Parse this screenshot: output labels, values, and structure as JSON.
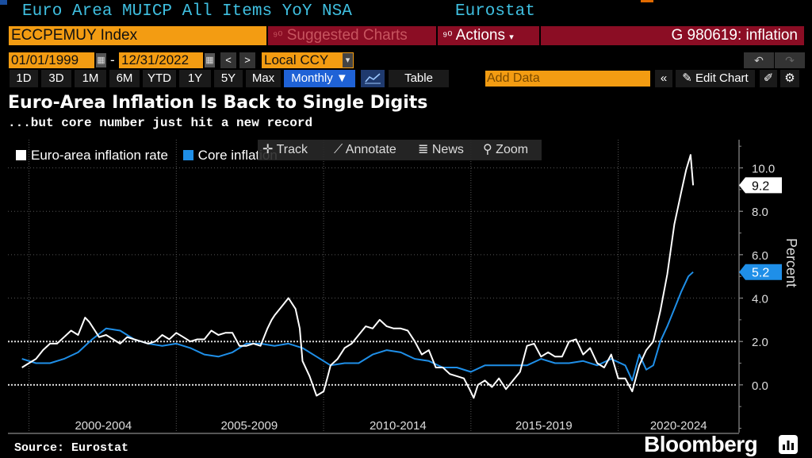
{
  "header": {
    "title_left": "Euro Area MUICP All Items YoY NSA",
    "title_right": "Eurostat",
    "ticker": "ECCPEMUY Index",
    "suggested": "Suggested Charts",
    "actions": "Actions",
    "chart_id": "G 980619: inflation"
  },
  "controls": {
    "start_date": "01/01/1999",
    "dash": "-",
    "end_date": "12/31/2022",
    "currency": "Local CCY",
    "periods": [
      "1D",
      "3D",
      "1M",
      "6M",
      "YTD",
      "1Y",
      "5Y",
      "Max"
    ],
    "frequency": "Monthly",
    "table": "Table",
    "add_data_placeholder": "Add Data",
    "edit_chart": "Edit Chart"
  },
  "chart_tools": {
    "track": "Track",
    "annotate": "Annotate",
    "news": "News",
    "zoom": "Zoom"
  },
  "footer": {
    "source": "Source: Eurostat",
    "brand": "Bloomberg"
  },
  "colors": {
    "accent_orange": "#f39c12",
    "accent_red": "#8b0d24",
    "headline_series": "#ffffff",
    "core_series": "#1f8fe8"
  },
  "chart_data": {
    "type": "line",
    "title": "Euro-Area Inflation Is Back to Single Digits",
    "subtitle": "...but core number just hit a new record",
    "ylabel": "Percent",
    "ylim": [
      -2.2,
      11.3
    ],
    "yticks": [
      "10.0",
      "8.0",
      "6.0",
      "4.0",
      "2.0",
      "0.0"
    ],
    "xlim": [
      1998.5,
      2024.5
    ],
    "xtick_labels": [
      "2000-2004",
      "2005-2009",
      "2010-2014",
      "2015-2019",
      "2020-2024"
    ],
    "dotted_reference_lines": [
      2.0,
      0.0
    ],
    "legend_position": "top-left",
    "last_value_labels": {
      "headline": "9.2",
      "core": "5.2"
    },
    "series": [
      {
        "name": "Euro-area inflation rate",
        "key": "headline",
        "x": [
          1999.0,
          1999.25,
          1999.5,
          1999.75,
          2000.0,
          2000.25,
          2000.5,
          2000.75,
          2001.0,
          2001.25,
          2001.4,
          2001.6,
          2001.75,
          2002.0,
          2002.25,
          2002.5,
          2002.75,
          2003.0,
          2003.25,
          2003.5,
          2003.75,
          2004.0,
          2004.25,
          2004.5,
          2004.75,
          2005.0,
          2005.25,
          2005.5,
          2005.75,
          2006.0,
          2006.25,
          2006.5,
          2006.75,
          2007.0,
          2007.25,
          2007.5,
          2007.75,
          2007.9,
          2008.0,
          2008.25,
          2008.5,
          2008.75,
          2008.9,
          2009.0,
          2009.25,
          2009.5,
          2009.75,
          2009.9,
          2010.0,
          2010.25,
          2010.5,
          2010.75,
          2011.0,
          2011.25,
          2011.5,
          2011.75,
          2012.0,
          2012.25,
          2012.5,
          2012.75,
          2013.0,
          2013.25,
          2013.5,
          2013.75,
          2014.0,
          2014.25,
          2014.5,
          2014.75,
          2014.95,
          2015.1,
          2015.25,
          2015.5,
          2015.75,
          2016.0,
          2016.25,
          2016.5,
          2016.75,
          2017.0,
          2017.25,
          2017.5,
          2017.75,
          2018.0,
          2018.25,
          2018.5,
          2018.75,
          2019.0,
          2019.25,
          2019.5,
          2019.75,
          2020.0,
          2020.25,
          2020.5,
          2020.75,
          2021.0,
          2021.25,
          2021.5,
          2021.75,
          2022.0,
          2022.25,
          2022.5,
          2022.67,
          2022.83,
          2022.92
        ],
        "y": [
          0.8,
          1.0,
          1.2,
          1.6,
          1.9,
          1.9,
          2.2,
          2.5,
          2.3,
          3.1,
          2.9,
          2.5,
          2.2,
          2.3,
          2.1,
          1.9,
          2.2,
          2.1,
          2.0,
          1.9,
          2.0,
          2.3,
          2.1,
          2.4,
          2.2,
          2.0,
          2.1,
          2.1,
          2.5,
          2.3,
          2.4,
          2.4,
          1.8,
          1.8,
          1.9,
          1.8,
          2.6,
          3.0,
          3.2,
          3.6,
          4.0,
          3.5,
          2.6,
          1.1,
          0.4,
          -0.5,
          -0.3,
          0.4,
          0.9,
          1.2,
          1.7,
          1.9,
          2.3,
          2.7,
          2.6,
          3.0,
          2.7,
          2.6,
          2.6,
          2.5,
          2.0,
          1.4,
          1.6,
          0.8,
          0.8,
          0.5,
          0.4,
          0.3,
          -0.2,
          -0.6,
          0.0,
          0.2,
          -0.1,
          0.3,
          -0.2,
          0.2,
          0.6,
          1.8,
          1.9,
          1.3,
          1.5,
          1.3,
          1.3,
          2.0,
          2.1,
          1.4,
          1.7,
          1.0,
          0.8,
          1.4,
          0.3,
          0.3,
          -0.3,
          0.9,
          1.6,
          2.0,
          3.4,
          5.1,
          7.4,
          8.9,
          9.9,
          10.6,
          9.2
        ]
      },
      {
        "name": "Core inflation",
        "key": "core",
        "x": [
          1999.0,
          1999.5,
          2000.0,
          2000.5,
          2001.0,
          2001.5,
          2002.0,
          2002.5,
          2003.0,
          2003.5,
          2004.0,
          2004.5,
          2005.0,
          2005.5,
          2006.0,
          2006.5,
          2007.0,
          2007.5,
          2008.0,
          2008.5,
          2009.0,
          2009.5,
          2010.0,
          2010.5,
          2011.0,
          2011.5,
          2012.0,
          2012.5,
          2013.0,
          2013.5,
          2014.0,
          2014.5,
          2015.0,
          2015.5,
          2016.0,
          2016.5,
          2017.0,
          2017.5,
          2018.0,
          2018.5,
          2019.0,
          2019.5,
          2020.0,
          2020.5,
          2020.75,
          2021.0,
          2021.25,
          2021.5,
          2021.75,
          2022.0,
          2022.25,
          2022.5,
          2022.75,
          2022.92
        ],
        "y": [
          1.2,
          1.0,
          1.0,
          1.2,
          1.5,
          2.1,
          2.6,
          2.5,
          2.1,
          1.9,
          1.8,
          1.9,
          1.7,
          1.4,
          1.3,
          1.5,
          1.9,
          1.9,
          1.8,
          1.9,
          1.7,
          1.3,
          0.9,
          1.0,
          1.0,
          1.4,
          1.6,
          1.5,
          1.2,
          1.1,
          0.8,
          0.8,
          0.6,
          0.9,
          0.9,
          0.9,
          0.9,
          1.2,
          1.0,
          1.0,
          1.1,
          0.9,
          1.2,
          0.9,
          0.2,
          1.4,
          0.7,
          0.9,
          2.0,
          2.7,
          3.5,
          4.3,
          5.0,
          5.2
        ]
      }
    ]
  }
}
